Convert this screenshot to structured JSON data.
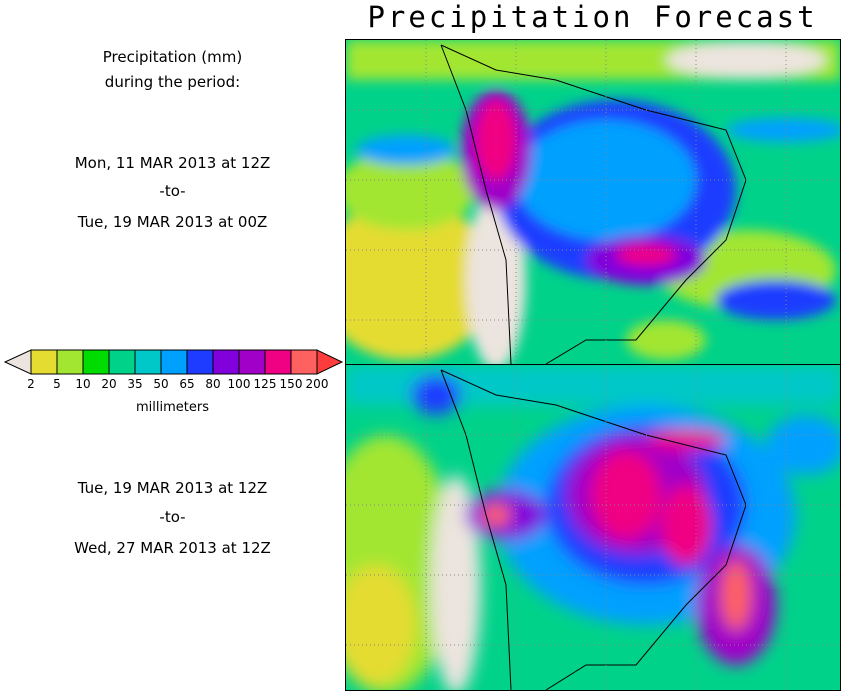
{
  "title": "Precipitation Forecast",
  "legend": {
    "header_line1": "Precipitation (mm)",
    "header_line2": "during the period:",
    "unit": "millimeters",
    "ticks": [
      "2",
      "5",
      "10",
      "20",
      "35",
      "50",
      "65",
      "80",
      "100",
      "125",
      "150",
      "200"
    ],
    "colors": [
      "#ece4de",
      "#e5dc32",
      "#a2e632",
      "#00dc00",
      "#00d28a",
      "#00c8c8",
      "#00a0ff",
      "#1e3cff",
      "#8200dc",
      "#a000c8",
      "#f00082",
      "#ff6060",
      "#ff3c3c"
    ]
  },
  "periods": [
    {
      "start": "Mon, 11 MAR 2013 at 12Z",
      "sep": "-to-",
      "end": "Tue, 19 MAR 2013 at 00Z"
    },
    {
      "start": "Tue, 19 MAR 2013 at 12Z",
      "sep": "-to-",
      "end": "Wed, 27 MAR 2013 at 12Z"
    }
  ]
}
